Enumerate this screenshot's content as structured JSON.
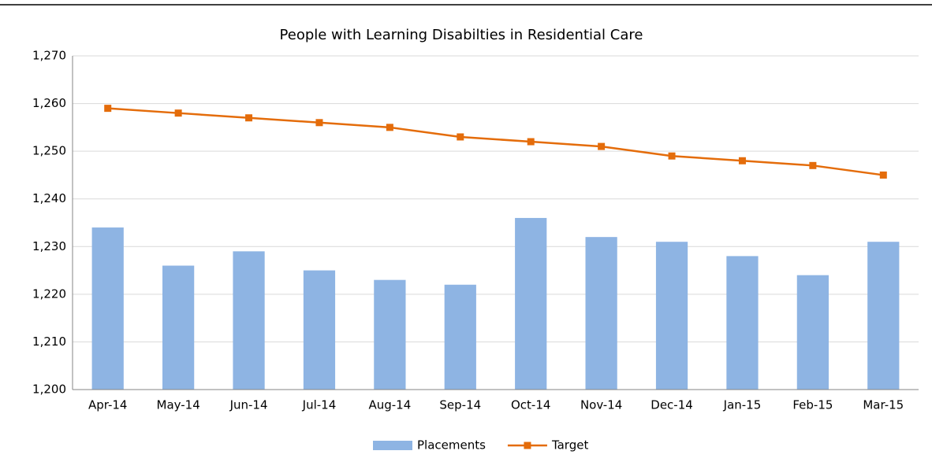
{
  "chart_data": {
    "type": "combo",
    "title": "People with Learning Disabilties in Residential Care",
    "categories": [
      "Apr-14",
      "May-14",
      "Jun-14",
      "Jul-14",
      "Aug-14",
      "Sep-14",
      "Oct-14",
      "Nov-14",
      "Dec-14",
      "Jan-15",
      "Feb-15",
      "Mar-15"
    ],
    "series": [
      {
        "name": "Placements",
        "type": "bar",
        "color": "#8eb4e3",
        "values": [
          1234,
          1226,
          1229,
          1225,
          1223,
          1222,
          1236,
          1232,
          1231,
          1228,
          1224,
          1231
        ]
      },
      {
        "name": "Target",
        "type": "line",
        "color": "#e46c0a",
        "values": [
          1259,
          1258,
          1257,
          1256,
          1255,
          1253,
          1252,
          1251,
          1249,
          1248,
          1247,
          1245
        ]
      }
    ],
    "ylim": [
      1200,
      1270
    ],
    "yticks": [
      {
        "value": 1200,
        "label": "1,200"
      },
      {
        "value": 1210,
        "label": "1,210"
      },
      {
        "value": 1220,
        "label": "1,220"
      },
      {
        "value": 1230,
        "label": "1,230"
      },
      {
        "value": 1240,
        "label": "1,240"
      },
      {
        "value": 1250,
        "label": "1,250"
      },
      {
        "value": 1260,
        "label": "1,260"
      },
      {
        "value": 1270,
        "label": "1,270"
      }
    ],
    "grid": true,
    "legend": "bottom"
  }
}
